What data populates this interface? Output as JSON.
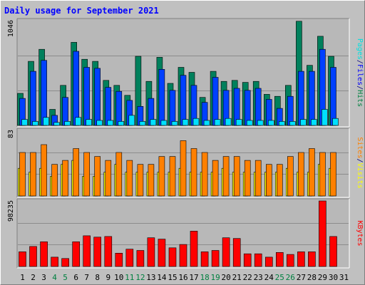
{
  "chart_data": {
    "title": "Daily usage for September 2021",
    "type": "bar",
    "categories": [
      "1",
      "2",
      "3",
      "4",
      "5",
      "6",
      "7",
      "8",
      "9",
      "10",
      "11",
      "12",
      "13",
      "14",
      "15",
      "16",
      "17",
      "18",
      "19",
      "20",
      "21",
      "22",
      "23",
      "24",
      "25",
      "26",
      "27",
      "28",
      "29",
      "30",
      "31"
    ],
    "weekend_days": [
      "4",
      "5",
      "11",
      "12",
      "18",
      "19",
      "25",
      "26"
    ],
    "panels": [
      {
        "name": "hits-files-pages",
        "ymax": 1046,
        "ymax_label": "1046",
        "side_labels": [
          {
            "text": "Pages",
            "color": "#00e0e0"
          },
          {
            "text": "/",
            "color": "#000080"
          },
          {
            "text": "Files",
            "color": "#0000ff"
          },
          {
            "text": "/",
            "color": "#000080"
          },
          {
            "text": "Hits",
            "color": "#008040"
          }
        ],
        "series": [
          {
            "name": "Hits",
            "color": "#00805c",
            "values": [
              320,
              640,
              760,
              160,
              400,
              830,
              660,
              640,
              450,
              400,
              300,
              690,
              440,
              680,
              420,
              580,
              530,
              280,
              540,
              440,
              450,
              430,
              440,
              310,
              290,
              400,
              1040,
              600,
              890,
              690,
              0
            ]
          },
          {
            "name": "Files",
            "color": "#0040ff",
            "values": [
              270,
              540,
              650,
              100,
              280,
              740,
              580,
              570,
              380,
              340,
              250,
              190,
              270,
              560,
              350,
              500,
              400,
              230,
              480,
              350,
              370,
              350,
              370,
              260,
              170,
              290,
              540,
              540,
              760,
              580,
              0
            ]
          },
          {
            "name": "Pages",
            "color": "#00e0ff",
            "values": [
              60,
              40,
              80,
              30,
              40,
              80,
              60,
              50,
              50,
              40,
              100,
              40,
              60,
              50,
              40,
              60,
              70,
              50,
              60,
              70,
              60,
              50,
              50,
              50,
              40,
              40,
              60,
              60,
              160,
              70,
              0
            ]
          }
        ]
      },
      {
        "name": "visits-sites",
        "ymax": 83,
        "ymax_label": "83",
        "side_labels": [
          {
            "text": "Sites",
            "color": "#ff8000"
          },
          {
            "text": "/",
            "color": "#000080"
          },
          {
            "text": "Visits",
            "color": "#ffff00"
          }
        ],
        "series": [
          {
            "name": "Visits",
            "color": "#ffff00",
            "values": [
              35,
              30,
              35,
              25,
              40,
              45,
              25,
              25,
              30,
              40,
              30,
              30,
              30,
              30,
              30,
              35,
              30,
              30,
              30,
              35,
              30,
              30,
              30,
              30,
              30,
              35,
              30,
              30,
              40,
              35,
              0
            ]
          },
          {
            "name": "Sites",
            "color": "#ff8000",
            "values": [
              55,
              55,
              65,
              40,
              45,
              60,
              55,
              50,
              45,
              55,
              45,
              40,
              40,
              50,
              50,
              70,
              60,
              55,
              45,
              50,
              50,
              45,
              45,
              40,
              40,
              50,
              55,
              60,
              55,
              55,
              0
            ]
          }
        ]
      },
      {
        "name": "kbytes",
        "ymax": 98235,
        "ymax_label": "98235",
        "side_labels": [
          {
            "text": "KBytes",
            "color": "#ff0000"
          }
        ],
        "series": [
          {
            "name": "KBytes",
            "color": "#ff0000",
            "values": [
              22000,
              30000,
              37000,
              14000,
              12000,
              37000,
              46000,
              44000,
              45000,
              20000,
              26000,
              24000,
              43000,
              41000,
              28000,
              33000,
              53000,
              22000,
              24000,
              43000,
              42000,
              19000,
              19000,
              14000,
              21000,
              18000,
              22000,
              22000,
              98235,
              45000,
              0
            ]
          }
        ]
      }
    ]
  }
}
